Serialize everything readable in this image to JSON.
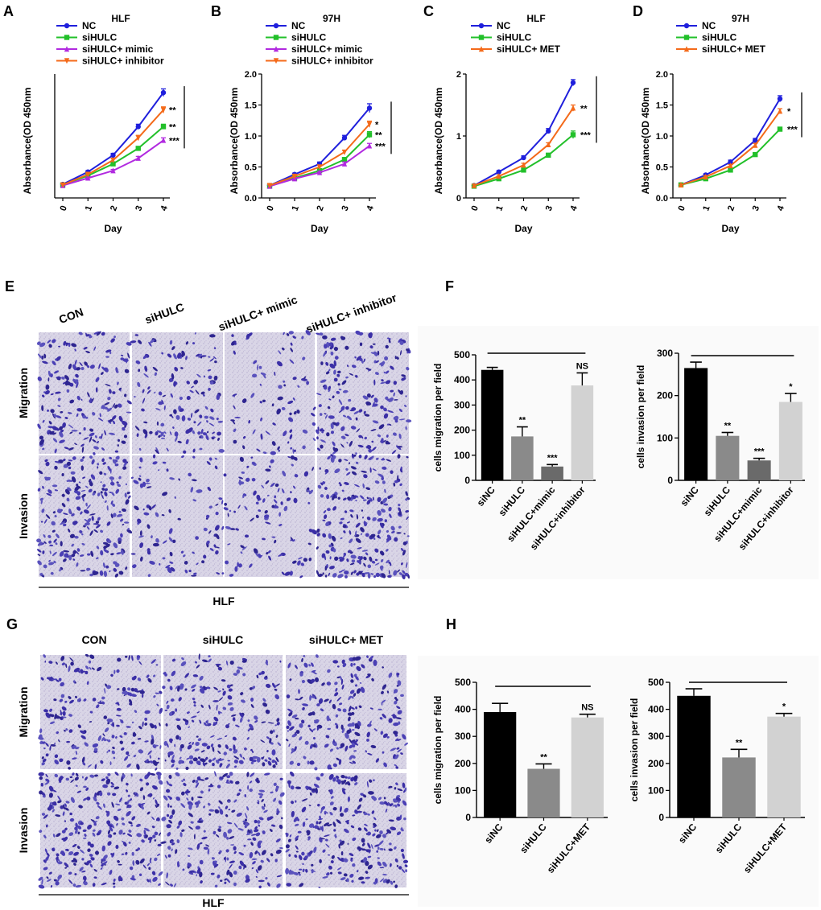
{
  "panels": {
    "A": {
      "letter": "A"
    },
    "B": {
      "letter": "B"
    },
    "C": {
      "letter": "C"
    },
    "D": {
      "letter": "D"
    },
    "E": {
      "letter": "E"
    },
    "F": {
      "letter": "F"
    },
    "G": {
      "letter": "G"
    },
    "H": {
      "letter": "H"
    }
  },
  "panel_E": {
    "columns": [
      "CON",
      "siHULC",
      "siHULC+ mimic",
      "siHULC+ inhibitor"
    ],
    "rows": [
      "Migration",
      "Invasion"
    ],
    "cell_line": "HLF",
    "stain_color": "#3b2fa6",
    "background_color": "#d8d4e4"
  },
  "panel_G": {
    "columns": [
      "CON",
      "siHULC",
      "siHULC+ MET"
    ],
    "rows": [
      "Migration",
      "Invasion"
    ],
    "cell_line": "HLF"
  },
  "colors": {
    "NC": "#1f1fdc",
    "siHULC": "#22c02a",
    "mimic": "#b12ae0",
    "inhibitor": "#f46a1a",
    "black_bar": "#000000",
    "dark_gray_bar": "#8a8a8a",
    "mid_gray_bar": "#6a6a6a",
    "light_gray_bar": "#d2d2d2"
  },
  "chart_data": [
    {
      "id": "A",
      "type": "line",
      "title": "HLF",
      "xlabel": "Day",
      "ylabel": "Absorbance(OD 450nm",
      "x": [
        0,
        1,
        2,
        3,
        4
      ],
      "ylim": [
        0,
        2.0
      ],
      "yticks_shown": false,
      "series": [
        {
          "name": "NC",
          "color": "#1f1fdc",
          "marker": "circle",
          "values": [
            0.22,
            0.42,
            0.69,
            1.15,
            1.7
          ],
          "errors": [
            0.02,
            0.02,
            0.03,
            0.04,
            0.06
          ]
        },
        {
          "name": "siHULC",
          "color": "#22c02a",
          "marker": "square",
          "values": [
            0.21,
            0.36,
            0.55,
            0.8,
            1.15
          ],
          "errors": [
            0.02,
            0.02,
            0.03,
            0.03,
            0.04
          ]
        },
        {
          "name": "siHULC+ mimic",
          "color": "#b12ae0",
          "marker": "triangle-up",
          "values": [
            0.2,
            0.32,
            0.44,
            0.64,
            0.93
          ],
          "errors": [
            0.02,
            0.02,
            0.02,
            0.03,
            0.04
          ]
        },
        {
          "name": "siHULC+ inhibitor",
          "color": "#f46a1a",
          "marker": "triangle-down",
          "values": [
            0.21,
            0.38,
            0.61,
            0.97,
            1.42
          ],
          "errors": [
            0.02,
            0.02,
            0.03,
            0.04,
            0.05
          ]
        }
      ],
      "significance": [
        "**",
        "**",
        "***"
      ]
    },
    {
      "id": "B",
      "type": "line",
      "title": "97H",
      "xlabel": "Day",
      "ylabel": "Absorbance(OD 450nm",
      "x": [
        0,
        1,
        2,
        3,
        4
      ],
      "ylim": [
        0,
        2.0
      ],
      "yticks": [
        0,
        0.5,
        1.0,
        1.5,
        2.0
      ],
      "ytick_labels": [
        "0.0",
        "0.5",
        "1.0",
        "1.5",
        "2.0"
      ],
      "series": [
        {
          "name": "NC",
          "color": "#1f1fdc",
          "marker": "circle",
          "values": [
            0.2,
            0.38,
            0.55,
            0.97,
            1.45
          ],
          "errors": [
            0.02,
            0.02,
            0.03,
            0.04,
            0.07
          ]
        },
        {
          "name": "siHULC",
          "color": "#22c02a",
          "marker": "square",
          "values": [
            0.19,
            0.32,
            0.44,
            0.62,
            1.02
          ],
          "errors": [
            0.02,
            0.02,
            0.02,
            0.03,
            0.05
          ]
        },
        {
          "name": "siHULC+ mimic",
          "color": "#b12ae0",
          "marker": "triangle-up",
          "values": [
            0.19,
            0.31,
            0.41,
            0.55,
            0.84
          ],
          "errors": [
            0.02,
            0.02,
            0.02,
            0.03,
            0.04
          ]
        },
        {
          "name": "siHULC+ inhibitor",
          "color": "#f46a1a",
          "marker": "triangle-down",
          "values": [
            0.2,
            0.35,
            0.5,
            0.74,
            1.19
          ],
          "errors": [
            0.02,
            0.02,
            0.03,
            0.03,
            0.05
          ]
        }
      ],
      "significance": [
        "*",
        "**",
        "***"
      ]
    },
    {
      "id": "C",
      "type": "line",
      "title": "HLF",
      "xlabel": "Day",
      "ylabel": "Absorbance(OD 450nm",
      "x": [
        0,
        1,
        2,
        3,
        4
      ],
      "ylim": [
        0,
        2.0
      ],
      "yticks": [
        0,
        1,
        2
      ],
      "ytick_labels": [
        "0",
        "1",
        "2"
      ],
      "series": [
        {
          "name": "NC",
          "color": "#1f1fdc",
          "marker": "circle",
          "values": [
            0.2,
            0.42,
            0.65,
            1.08,
            1.86
          ],
          "errors": [
            0.02,
            0.02,
            0.03,
            0.04,
            0.05
          ]
        },
        {
          "name": "siHULC",
          "color": "#22c02a",
          "marker": "square",
          "values": [
            0.19,
            0.31,
            0.45,
            0.69,
            1.02
          ],
          "errors": [
            0.02,
            0.02,
            0.02,
            0.03,
            0.06
          ]
        },
        {
          "name": "siHULC+ MET",
          "color": "#f46a1a",
          "marker": "triangle-up",
          "values": [
            0.2,
            0.35,
            0.53,
            0.86,
            1.45
          ],
          "errors": [
            0.02,
            0.02,
            0.03,
            0.03,
            0.05
          ]
        }
      ],
      "significance": [
        "**",
        "***"
      ]
    },
    {
      "id": "D",
      "type": "line",
      "title": "97H",
      "xlabel": "Day",
      "ylabel": "Absorbance(OD 450nm",
      "x": [
        0,
        1,
        2,
        3,
        4
      ],
      "ylim": [
        0,
        2.0
      ],
      "yticks": [
        0,
        0.5,
        1.0,
        1.5,
        2.0
      ],
      "ytick_labels": [
        "0.0",
        "0.5",
        "1.0",
        "1.5",
        "2.0"
      ],
      "series": [
        {
          "name": "NC",
          "color": "#1f1fdc",
          "marker": "circle",
          "values": [
            0.21,
            0.37,
            0.58,
            0.93,
            1.6
          ],
          "errors": [
            0.01,
            0.02,
            0.03,
            0.03,
            0.05
          ]
        },
        {
          "name": "siHULC",
          "color": "#22c02a",
          "marker": "square",
          "values": [
            0.21,
            0.31,
            0.45,
            0.7,
            1.11
          ],
          "errors": [
            0.01,
            0.02,
            0.02,
            0.02,
            0.02
          ]
        },
        {
          "name": "siHULC+ MET",
          "color": "#f46a1a",
          "marker": "triangle-up",
          "values": [
            0.21,
            0.34,
            0.52,
            0.85,
            1.4
          ],
          "errors": [
            0.01,
            0.02,
            0.02,
            0.03,
            0.04
          ]
        }
      ],
      "significance": [
        "*",
        "***"
      ]
    },
    {
      "id": "F-migration",
      "type": "bar",
      "title": "",
      "xlabel": "",
      "ylabel": "cells migration per field",
      "categories": [
        "siNC",
        "siHULC",
        "siHULC+mimic",
        "siHULC+inhibitor"
      ],
      "values": [
        440,
        175,
        55,
        378
      ],
      "errors": [
        10,
        38,
        8,
        50
      ],
      "bar_colors": [
        "#000000",
        "#8a8a8a",
        "#6a6a6a",
        "#d2d2d2"
      ],
      "ylim": [
        0,
        500
      ],
      "yticks": [
        0,
        100,
        200,
        300,
        400,
        500
      ],
      "significance": [
        "",
        "**",
        "***",
        "NS"
      ]
    },
    {
      "id": "F-invasion",
      "type": "bar",
      "title": "",
      "xlabel": "",
      "ylabel": "cells invasion per field",
      "categories": [
        "siNC",
        "siHULC",
        "siHULC+mimic",
        "siHULC+inhibitor"
      ],
      "values": [
        265,
        105,
        47,
        185
      ],
      "errors": [
        14,
        8,
        5,
        20
      ],
      "bar_colors": [
        "#000000",
        "#8a8a8a",
        "#6a6a6a",
        "#d2d2d2"
      ],
      "ylim": [
        0,
        300
      ],
      "yticks": [
        0,
        100,
        200,
        300
      ],
      "significance": [
        "",
        "**",
        "***",
        "*"
      ]
    },
    {
      "id": "H-migration",
      "type": "bar",
      "title": "",
      "xlabel": "",
      "ylabel": "cells migration per field",
      "categories": [
        "siNC",
        "siHULC",
        "siHULC+MET"
      ],
      "values": [
        390,
        180,
        370
      ],
      "errors": [
        32,
        18,
        12
      ],
      "bar_colors": [
        "#000000",
        "#8a8a8a",
        "#d2d2d2"
      ],
      "ylim": [
        0,
        500
      ],
      "yticks": [
        0,
        100,
        200,
        300,
        400,
        500
      ],
      "significance": [
        "",
        "**",
        "NS"
      ]
    },
    {
      "id": "H-invasion",
      "type": "bar",
      "title": "",
      "xlabel": "",
      "ylabel": "cells invasion per field",
      "categories": [
        "siNC",
        "siHULC",
        "siHULC+MET"
      ],
      "values": [
        450,
        222,
        373
      ],
      "errors": [
        26,
        30,
        12
      ],
      "bar_colors": [
        "#000000",
        "#8a8a8a",
        "#d2d2d2"
      ],
      "ylim": [
        0,
        500
      ],
      "yticks": [
        0,
        100,
        200,
        300,
        400,
        500
      ],
      "significance": [
        "",
        "**",
        "*"
      ]
    }
  ]
}
